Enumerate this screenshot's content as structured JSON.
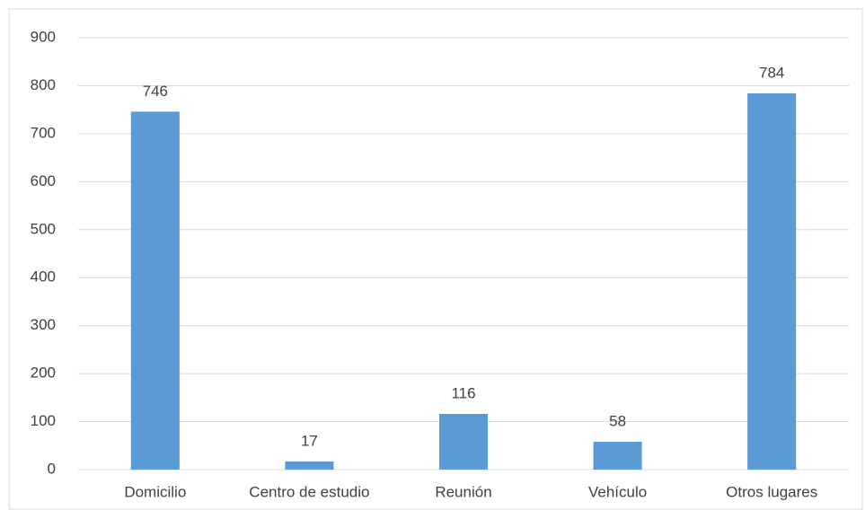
{
  "chart_data": {
    "type": "bar",
    "categories": [
      "Domicilio",
      "Centro de estudio",
      "Reunión",
      "Vehículo",
      "Otros lugares"
    ],
    "values": [
      746,
      17,
      116,
      58,
      784
    ],
    "color": "#5b9bd5",
    "ylim": [
      0,
      900
    ],
    "yticks": [
      0,
      100,
      200,
      300,
      400,
      500,
      600,
      700,
      800,
      900
    ],
    "grid": true
  }
}
